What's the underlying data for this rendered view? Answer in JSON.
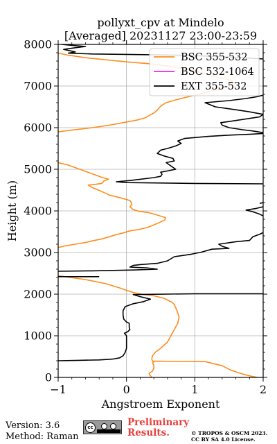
{
  "chart_data": {
    "type": "line",
    "title": "pollyxt_cpv at Mindelo",
    "subtitle": "[Averaged] 20231127 23:00-23:59",
    "xlabel": "Angstroem Exponent",
    "ylabel": "Height (m)",
    "xlim": [
      -1,
      2
    ],
    "ylim": [
      0,
      8000
    ],
    "xticks": [
      "−1",
      "0",
      "1",
      "2"
    ],
    "yticks": [
      "0",
      "1000",
      "2000",
      "3000",
      "4000",
      "5000",
      "6000",
      "7000",
      "8000"
    ],
    "grid": true,
    "legend_position": "top-right",
    "series": [
      {
        "name": "BSC 355-532",
        "color": "#ff8c1a",
        "points": [
          [
            1.92,
            0
          ],
          [
            1.82,
            30
          ],
          [
            1.7,
            80
          ],
          [
            1.52,
            180
          ],
          [
            1.4,
            280
          ],
          [
            1.15,
            380
          ],
          [
            0.38,
            390
          ],
          [
            0.4,
            380
          ],
          [
            0.38,
            340
          ],
          [
            0.4,
            300
          ],
          [
            0.4,
            260
          ],
          [
            0.4,
            220
          ],
          [
            0.38,
            150
          ],
          [
            0.33,
            100
          ],
          [
            0.34,
            60
          ],
          [
            0.37,
            0
          ]
        ]
      },
      {
        "name": "BSC 355-532",
        "color": "#ff8c1a",
        "points": [
          [
            0.38,
            380
          ],
          [
            0.37,
            450
          ],
          [
            0.38,
            520
          ],
          [
            0.42,
            600
          ],
          [
            0.5,
            700
          ],
          [
            0.6,
            850
          ],
          [
            0.65,
            1000
          ],
          [
            0.7,
            1150
          ],
          [
            0.75,
            1300
          ],
          [
            0.77,
            1450
          ],
          [
            0.74,
            1600
          ],
          [
            0.7,
            1750
          ],
          [
            0.67,
            1800
          ],
          [
            0.55,
            1900
          ],
          [
            0.4,
            1960
          ],
          [
            0.22,
            2000
          ],
          [
            0.1,
            2040
          ],
          [
            0.02,
            2080
          ],
          [
            -0.1,
            2150
          ],
          [
            -0.3,
            2250
          ],
          [
            -0.6,
            2350
          ],
          [
            -0.9,
            2420
          ],
          [
            -1.0,
            2440
          ]
        ]
      },
      {
        "name": "BSC 355-532",
        "color": "#ff8c1a",
        "points": [
          [
            -1.0,
            3120
          ],
          [
            -0.9,
            3160
          ],
          [
            -0.75,
            3200
          ],
          [
            -0.6,
            3240
          ],
          [
            -0.5,
            3280
          ],
          [
            -0.35,
            3330
          ],
          [
            -0.25,
            3380
          ],
          [
            -0.15,
            3430
          ],
          [
            -0.05,
            3470
          ],
          [
            0.05,
            3520
          ],
          [
            0.2,
            3560
          ],
          [
            0.3,
            3600
          ],
          [
            0.38,
            3650
          ],
          [
            0.48,
            3720
          ],
          [
            0.56,
            3780
          ],
          [
            0.57,
            3840
          ],
          [
            0.45,
            3900
          ],
          [
            0.32,
            3960
          ],
          [
            0.18,
            3990
          ],
          [
            0.1,
            4030
          ],
          [
            0.05,
            4100
          ],
          [
            0.08,
            4150
          ],
          [
            0.07,
            4200
          ],
          [
            0.05,
            4250
          ],
          [
            -0.1,
            4320
          ],
          [
            -0.25,
            4380
          ],
          [
            -0.38,
            4480
          ],
          [
            -0.5,
            4560
          ],
          [
            -0.56,
            4620
          ],
          [
            -0.45,
            4640
          ],
          [
            -0.36,
            4660
          ],
          [
            -0.33,
            4720
          ],
          [
            -0.26,
            4760
          ],
          [
            -0.35,
            4800
          ],
          [
            -0.45,
            4860
          ],
          [
            -0.55,
            4920
          ],
          [
            -0.65,
            4980
          ],
          [
            -0.75,
            5040
          ],
          [
            -0.85,
            5100
          ],
          [
            -0.95,
            5140
          ],
          [
            -1.0,
            5160
          ]
        ]
      },
      {
        "name": "BSC 355-532",
        "color": "#ff8c1a",
        "points": [
          [
            -1.0,
            5900
          ],
          [
            -0.8,
            5940
          ],
          [
            -0.5,
            6000
          ],
          [
            -0.25,
            6060
          ],
          [
            -0.05,
            6120
          ],
          [
            0.15,
            6180
          ],
          [
            0.28,
            6240
          ],
          [
            0.34,
            6300
          ],
          [
            0.4,
            6350
          ],
          [
            0.45,
            6420
          ],
          [
            0.48,
            6480
          ],
          [
            0.52,
            6540
          ],
          [
            0.58,
            6600
          ],
          [
            0.75,
            6680
          ],
          [
            0.95,
            6760
          ],
          [
            1.15,
            6840
          ],
          [
            1.35,
            6920
          ],
          [
            1.5,
            7000
          ],
          [
            1.58,
            7080
          ],
          [
            1.5,
            7150
          ],
          [
            1.3,
            7230
          ],
          [
            1.1,
            7320
          ],
          [
            0.9,
            7400
          ],
          [
            0.6,
            7480
          ],
          [
            0.3,
            7540
          ],
          [
            0.0,
            7580
          ],
          [
            -0.3,
            7630
          ],
          [
            -0.6,
            7680
          ],
          [
            -0.85,
            7740
          ],
          [
            -1.0,
            7790
          ]
        ]
      },
      {
        "name": "BSC 532-1064",
        "color": "#ee22ee",
        "points": []
      },
      {
        "name": "EXT 355-532",
        "color": "#000000",
        "points": [
          [
            -1.0,
            400
          ],
          [
            -0.7,
            410
          ],
          [
            -0.4,
            420
          ],
          [
            -0.2,
            440
          ],
          [
            -0.1,
            470
          ],
          [
            -0.05,
            520
          ],
          [
            -0.02,
            600
          ],
          [
            0.0,
            700
          ],
          [
            0.0,
            800
          ],
          [
            0.0,
            900
          ],
          [
            0.0,
            1000
          ],
          [
            -0.03,
            1060
          ],
          [
            0.02,
            1100
          ],
          [
            0.05,
            1150
          ],
          [
            0.04,
            1200
          ],
          [
            0.04,
            1300
          ],
          [
            0.0,
            1330
          ],
          [
            -0.04,
            1400
          ],
          [
            -0.05,
            1500
          ],
          [
            -0.05,
            1600
          ],
          [
            -0.02,
            1700
          ],
          [
            0.1,
            1770
          ],
          [
            0.25,
            1820
          ],
          [
            0.35,
            1880
          ],
          [
            0.2,
            1940
          ],
          [
            0.1,
            1990
          ],
          [
            1.0,
            2010
          ],
          [
            2.0,
            2010
          ]
        ]
      },
      {
        "name": "EXT 355-532",
        "color": "#000000",
        "points": [
          [
            -1.0,
            2420
          ],
          [
            -0.7,
            2420
          ],
          [
            -0.4,
            2420
          ]
        ]
      },
      {
        "name": "EXT 355-532",
        "color": "#000000",
        "points": [
          [
            -1.0,
            2550
          ],
          [
            -0.5,
            2560
          ],
          [
            0.1,
            2580
          ],
          [
            0.45,
            2600
          ],
          [
            0.3,
            2630
          ],
          [
            0.05,
            2650
          ],
          [
            0.1,
            2690
          ],
          [
            0.2,
            2710
          ],
          [
            0.45,
            2740
          ],
          [
            0.6,
            2800
          ],
          [
            0.7,
            2900
          ],
          [
            0.95,
            2960
          ],
          [
            1.1,
            3010
          ],
          [
            1.25,
            3080
          ],
          [
            1.5,
            3100
          ],
          [
            1.4,
            3150
          ],
          [
            1.35,
            3200
          ],
          [
            1.6,
            3260
          ],
          [
            1.8,
            3290
          ],
          [
            1.85,
            3380
          ],
          [
            1.95,
            3440
          ],
          [
            2.0,
            3480
          ]
        ]
      },
      {
        "name": "EXT 355-532",
        "color": "#000000",
        "points": [
          [
            2.0,
            3880
          ],
          [
            1.95,
            3920
          ],
          [
            1.85,
            3980
          ],
          [
            1.75,
            4020
          ],
          [
            1.9,
            4060
          ],
          [
            2.0,
            4100
          ]
        ]
      },
      {
        "name": "EXT 355-532",
        "color": "#000000",
        "points": [
          [
            1.95,
            4180
          ],
          [
            2.0,
            4200
          ]
        ]
      },
      {
        "name": "EXT 355-532",
        "color": "#000000",
        "points": [
          [
            2.0,
            4650
          ],
          [
            1.0,
            4660
          ],
          [
            0.0,
            4680
          ],
          [
            -0.15,
            4700
          ],
          [
            0.05,
            4730
          ],
          [
            0.2,
            4760
          ],
          [
            0.4,
            4800
          ],
          [
            0.5,
            4830
          ],
          [
            0.52,
            4880
          ],
          [
            0.5,
            4930
          ],
          [
            0.6,
            4960
          ],
          [
            0.72,
            5000
          ],
          [
            0.65,
            5080
          ],
          [
            0.58,
            5160
          ],
          [
            0.7,
            5200
          ],
          [
            0.68,
            5260
          ],
          [
            0.55,
            5320
          ],
          [
            0.45,
            5380
          ],
          [
            0.5,
            5460
          ],
          [
            0.6,
            5500
          ],
          [
            0.72,
            5560
          ],
          [
            0.8,
            5620
          ],
          [
            0.75,
            5680
          ],
          [
            0.85,
            5740
          ],
          [
            1.2,
            5790
          ],
          [
            1.5,
            5820
          ],
          [
            1.8,
            5840
          ],
          [
            2.0,
            5860
          ]
        ]
      },
      {
        "name": "EXT 355-532",
        "color": "#000000",
        "points": [
          [
            2.0,
            5880
          ],
          [
            1.85,
            5920
          ],
          [
            1.7,
            5950
          ],
          [
            1.5,
            6000
          ],
          [
            1.4,
            6060
          ],
          [
            1.38,
            6120
          ],
          [
            1.55,
            6160
          ],
          [
            1.75,
            6210
          ],
          [
            1.95,
            6260
          ],
          [
            2.0,
            6320
          ],
          [
            1.8,
            6380
          ],
          [
            1.6,
            6430
          ],
          [
            1.3,
            6500
          ],
          [
            1.15,
            6600
          ],
          [
            1.5,
            6650
          ],
          [
            1.75,
            6700
          ],
          [
            1.9,
            6740
          ],
          [
            2.0,
            6780
          ]
        ]
      },
      {
        "name": "EXT 355-532",
        "color": "#000000",
        "points": [
          [
            2.0,
            7650
          ],
          [
            1.5,
            7700
          ],
          [
            0.8,
            7740
          ],
          [
            0.0,
            7760
          ],
          [
            -0.5,
            7770
          ],
          [
            -0.85,
            7790
          ],
          [
            -0.75,
            7820
          ],
          [
            -0.92,
            7880
          ],
          [
            -0.75,
            7920
          ],
          [
            -0.6,
            7950
          ],
          [
            -0.82,
            7980
          ],
          [
            -0.95,
            8000
          ]
        ]
      }
    ]
  },
  "footer": {
    "version": "Version: 3.6",
    "method": "Method: Raman",
    "preliminary_line1": "Preliminary",
    "preliminary_line2": "Results.",
    "copyright_line1": "© TROPOS & OSCM 2023.",
    "copyright_line2": "CC BY SA 4.0 License.",
    "license_badge_text": "cc"
  }
}
